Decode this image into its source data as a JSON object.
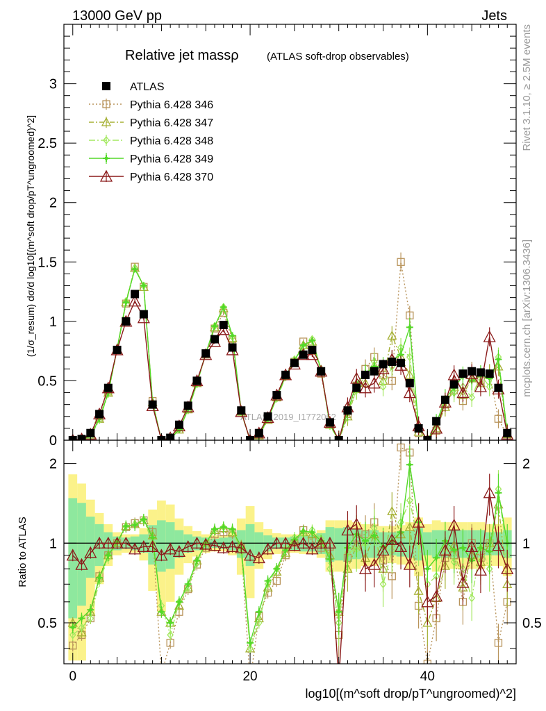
{
  "header": {
    "left": "13000 GeV pp",
    "right": "Jets"
  },
  "side": {
    "rivet": "Rivet 3.1.10, ≥ 2.5M events",
    "mcplots": "mcplots.cern.ch [arXiv:1306.3436]"
  },
  "colors": {
    "data": "#000000",
    "s346": "#b8935a",
    "s347": "#a5b034",
    "s348": "#a3e860",
    "s349": "#53d928",
    "s370": "#8b1a1a",
    "band_inner": "#8ee89e",
    "band_outer": "#fbf28a"
  },
  "chart_data": [
    {
      "type": "line",
      "title": "Relative jet massρ",
      "title_suffix": "(ATLAS soft-drop observables)",
      "watermark": "ATLAS_2019_I1772062",
      "ylabel": "(1/σ_resum) dσ/d log10[(m^soft drop/pT^ungroomed)^2]",
      "xlim": [
        -1,
        50
      ],
      "ylim": [
        0,
        3.5
      ],
      "yticks": [
        "0",
        "0.5",
        "1",
        "1.5",
        "2",
        "2.5",
        "3"
      ],
      "legend_position": "top-left",
      "x": [
        0,
        1,
        2,
        3,
        4,
        5,
        6,
        7,
        8,
        9,
        10,
        11,
        12,
        13,
        14,
        15,
        16,
        17,
        18,
        19,
        20,
        21,
        22,
        23,
        24,
        25,
        26,
        27,
        28,
        29,
        30,
        31,
        32,
        33,
        34,
        35,
        36,
        37,
        38,
        39,
        40,
        41,
        42,
        43,
        44,
        45,
        46,
        47,
        48,
        49
      ],
      "series": [
        {
          "name": "ATLAS",
          "key": "data",
          "values": [
            0.0,
            0.01,
            0.06,
            0.22,
            0.44,
            0.76,
            1.0,
            1.23,
            1.06,
            0.3,
            0.0,
            0.02,
            0.13,
            0.29,
            0.5,
            0.73,
            0.85,
            0.97,
            0.78,
            0.25,
            0.0,
            0.06,
            0.2,
            0.38,
            0.55,
            0.65,
            0.72,
            0.76,
            0.58,
            0.15,
            0.0,
            0.25,
            0.44,
            0.55,
            0.58,
            0.64,
            0.66,
            0.65,
            0.48,
            0.1,
            0.0,
            0.16,
            0.34,
            0.47,
            0.56,
            0.58,
            0.57,
            0.56,
            0.44,
            0.06
          ]
        },
        {
          "name": "Pythia 6.428 346",
          "key": "s346",
          "values": [
            0.0,
            0.0,
            0.04,
            0.19,
            0.41,
            0.76,
            1.15,
            1.46,
            1.29,
            0.33,
            0.0,
            0.01,
            0.09,
            0.26,
            0.48,
            0.72,
            0.94,
            1.07,
            0.85,
            0.24,
            0.0,
            0.04,
            0.18,
            0.36,
            0.54,
            0.66,
            0.83,
            0.75,
            0.56,
            0.14,
            0.0,
            0.22,
            0.46,
            0.6,
            0.7,
            0.55,
            0.5,
            1.5,
            1.05,
            0.06,
            0.0,
            0.08,
            0.3,
            0.42,
            0.33,
            0.58,
            0.5,
            0.56,
            0.18,
            0.04
          ]
        },
        {
          "name": "Pythia 6.428 347",
          "key": "s347",
          "values": [
            0.0,
            0.0,
            0.04,
            0.18,
            0.4,
            0.76,
            1.16,
            1.45,
            1.29,
            0.32,
            0.0,
            0.01,
            0.09,
            0.26,
            0.48,
            0.73,
            0.95,
            1.11,
            0.86,
            0.24,
            0.0,
            0.04,
            0.17,
            0.36,
            0.54,
            0.67,
            0.8,
            0.83,
            0.58,
            0.13,
            0.0,
            0.2,
            0.43,
            0.48,
            0.63,
            0.5,
            0.88,
            0.7,
            0.55,
            0.07,
            0.0,
            0.1,
            0.28,
            0.45,
            0.38,
            0.52,
            0.48,
            0.56,
            0.62,
            0.05
          ]
        },
        {
          "name": "Pythia 6.428 348",
          "key": "s348",
          "values": [
            0.0,
            0.0,
            0.03,
            0.17,
            0.39,
            0.77,
            1.17,
            1.45,
            1.3,
            0.3,
            0.0,
            0.01,
            0.09,
            0.25,
            0.47,
            0.73,
            0.96,
            1.12,
            0.87,
            0.23,
            0.0,
            0.03,
            0.18,
            0.35,
            0.53,
            0.68,
            0.78,
            0.85,
            0.6,
            0.12,
            0.0,
            0.23,
            0.42,
            0.55,
            0.66,
            0.45,
            0.62,
            0.78,
            0.7,
            0.1,
            0.0,
            0.12,
            0.33,
            0.4,
            0.45,
            0.36,
            0.55,
            0.45,
            0.7,
            0.06
          ]
        },
        {
          "name": "Pythia 6.428 349",
          "key": "s349",
          "values": [
            0.0,
            0.0,
            0.04,
            0.18,
            0.4,
            0.77,
            1.16,
            1.44,
            1.3,
            0.32,
            0.0,
            0.01,
            0.09,
            0.26,
            0.48,
            0.73,
            0.96,
            1.12,
            0.88,
            0.24,
            0.0,
            0.04,
            0.18,
            0.36,
            0.54,
            0.67,
            0.8,
            0.84,
            0.59,
            0.13,
            0.0,
            0.24,
            0.48,
            0.56,
            0.62,
            0.62,
            0.67,
            0.72,
            0.95,
            0.12,
            0.0,
            0.14,
            0.35,
            0.44,
            0.54,
            0.5,
            0.55,
            0.52,
            0.68,
            0.06
          ]
        },
        {
          "name": "Pythia 6.428 370",
          "key": "s370",
          "values": [
            0.0,
            0.01,
            0.05,
            0.22,
            0.44,
            0.76,
            1.0,
            1.17,
            1.03,
            0.29,
            0.0,
            0.02,
            0.12,
            0.28,
            0.5,
            0.72,
            0.83,
            0.93,
            0.76,
            0.24,
            0.0,
            0.06,
            0.19,
            0.38,
            0.55,
            0.64,
            0.72,
            0.72,
            0.58,
            0.15,
            0.0,
            0.28,
            0.52,
            0.44,
            0.48,
            0.6,
            0.68,
            0.63,
            0.4,
            0.12,
            0.0,
            0.1,
            0.32,
            0.55,
            0.4,
            0.56,
            0.45,
            0.87,
            0.43,
            0.05
          ]
        }
      ]
    },
    {
      "type": "line",
      "ylabel": "Ratio to ATLAS",
      "xlabel": "log10[(m^soft drop/pT^ungroomed)^2]",
      "xlim": [
        -1,
        50
      ],
      "ylim": [
        0.35,
        2.45
      ],
      "ylog": true,
      "xticks": [
        "0",
        "20",
        "40"
      ],
      "yticks": [
        "0.5",
        "1",
        "2"
      ],
      "reference": 1,
      "x": [
        0,
        1,
        2,
        3,
        4,
        5,
        6,
        7,
        8,
        9,
        10,
        11,
        12,
        13,
        14,
        15,
        16,
        17,
        18,
        19,
        20,
        21,
        22,
        23,
        24,
        25,
        26,
        27,
        28,
        29,
        30,
        31,
        32,
        33,
        34,
        35,
        36,
        37,
        38,
        39,
        40,
        41,
        42,
        43,
        44,
        45,
        46,
        47,
        48,
        49
      ],
      "band_inner": [
        0.48,
        0.42,
        0.26,
        0.18,
        0.1,
        0.06,
        0.05,
        0.06,
        0.08,
        0.17,
        0.22,
        0.2,
        0.12,
        0.08,
        0.06,
        0.05,
        0.04,
        0.05,
        0.06,
        0.12,
        0.18,
        0.1,
        0.07,
        0.05,
        0.05,
        0.06,
        0.07,
        0.07,
        0.09,
        0.15,
        0.14,
        0.15,
        0.13,
        0.12,
        0.12,
        0.1,
        0.1,
        0.11,
        0.12,
        0.14,
        0.1,
        0.12,
        0.12,
        0.12,
        0.12,
        0.12,
        0.12,
        0.1,
        0.1,
        0.12
      ],
      "band_outer": [
        0.82,
        0.68,
        0.46,
        0.3,
        0.18,
        0.1,
        0.08,
        0.08,
        0.14,
        0.34,
        0.45,
        0.4,
        0.24,
        0.16,
        0.11,
        0.08,
        0.07,
        0.07,
        0.1,
        0.24,
        0.38,
        0.2,
        0.13,
        0.09,
        0.08,
        0.08,
        0.09,
        0.09,
        0.12,
        0.22,
        0.22,
        0.22,
        0.2,
        0.18,
        0.18,
        0.16,
        0.16,
        0.17,
        0.2,
        0.25,
        0.18,
        0.22,
        0.2,
        0.2,
        0.2,
        0.2,
        0.2,
        0.18,
        0.18,
        0.25
      ],
      "series": [
        {
          "name": "Pythia 6.428 346",
          "key": "s346",
          "values": [
            0.41,
            0.45,
            0.52,
            0.75,
            0.9,
            1.0,
            1.15,
            1.19,
            1.22,
            1.1,
            0.32,
            0.42,
            0.55,
            0.67,
            0.83,
            0.96,
            1.08,
            1.1,
            1.09,
            0.96,
            0.3,
            0.53,
            0.65,
            0.72,
            0.9,
            1.0,
            1.12,
            1.02,
            0.96,
            0.97,
            0.45,
            0.88,
            1.05,
            1.08,
            1.2,
            0.86,
            0.75,
            2.3,
            2.2,
            0.58,
            0.35,
            0.52,
            0.88,
            0.9,
            0.6,
            1.0,
            0.88,
            1.0,
            0.42,
            0.6
          ]
        },
        {
          "name": "Pythia 6.428 347",
          "key": "s347",
          "values": [
            0.5,
            0.46,
            0.55,
            0.74,
            0.9,
            1.0,
            1.16,
            1.18,
            1.22,
            1.07,
            0.55,
            0.5,
            0.58,
            0.68,
            0.86,
            0.98,
            1.12,
            1.14,
            1.1,
            0.98,
            0.4,
            0.52,
            0.68,
            0.78,
            0.92,
            1.02,
            1.1,
            1.08,
            1.0,
            0.9,
            0.55,
            0.8,
            0.98,
            0.88,
            1.08,
            0.8,
            1.32,
            1.08,
            1.15,
            0.66,
            0.5,
            0.62,
            0.82,
            0.98,
            0.68,
            0.9,
            0.85,
            1.0,
            1.4,
            0.7
          ]
        },
        {
          "name": "Pythia 6.428 348",
          "key": "s348",
          "values": [
            0.45,
            0.48,
            0.52,
            0.72,
            0.88,
            1.01,
            1.16,
            1.18,
            1.23,
            1.0,
            0.58,
            0.45,
            0.6,
            0.68,
            0.84,
            1.0,
            1.12,
            1.15,
            1.12,
            0.92,
            0.4,
            0.5,
            0.7,
            0.8,
            0.95,
            1.05,
            1.08,
            1.12,
            1.04,
            0.8,
            0.5,
            0.92,
            0.95,
            1.0,
            1.14,
            0.7,
            0.94,
            1.2,
            1.45,
            1.0,
            0.7,
            0.75,
            0.96,
            0.85,
            0.8,
            0.62,
            0.96,
            0.8,
            1.6,
            0.9
          ]
        },
        {
          "name": "Pythia 6.428 349",
          "key": "s349",
          "values": [
            0.48,
            0.52,
            0.56,
            0.74,
            0.9,
            1.01,
            1.16,
            1.17,
            1.23,
            1.05,
            0.55,
            0.5,
            0.6,
            0.7,
            0.86,
            1.0,
            1.13,
            1.15,
            1.13,
            0.96,
            0.42,
            0.55,
            0.72,
            0.8,
            0.94,
            1.03,
            1.11,
            1.1,
            1.02,
            0.87,
            0.55,
            0.96,
            1.08,
            1.02,
            1.07,
            0.97,
            1.02,
            1.1,
            1.98,
            1.2,
            0.8,
            0.88,
            1.02,
            0.94,
            0.96,
            0.86,
            0.96,
            0.93,
            1.55,
            1.0
          ]
        },
        {
          "name": "Pythia 6.428 370",
          "key": "s370",
          "values": [
            0.9,
            0.83,
            0.92,
            1.0,
            1.0,
            1.0,
            1.0,
            0.95,
            0.97,
            0.97,
            0.9,
            0.95,
            0.93,
            0.97,
            1.0,
            0.99,
            0.98,
            0.96,
            0.97,
            0.96,
            0.9,
            0.88,
            0.95,
            1.0,
            1.0,
            0.98,
            1.0,
            0.95,
            1.0,
            1.0,
            0.3,
            1.12,
            1.18,
            0.8,
            0.83,
            0.94,
            1.03,
            0.97,
            0.83,
            1.2,
            0.6,
            0.63,
            0.94,
            1.17,
            0.71,
            0.97,
            0.79,
            1.55,
            0.98,
            0.8
          ]
        }
      ]
    }
  ]
}
